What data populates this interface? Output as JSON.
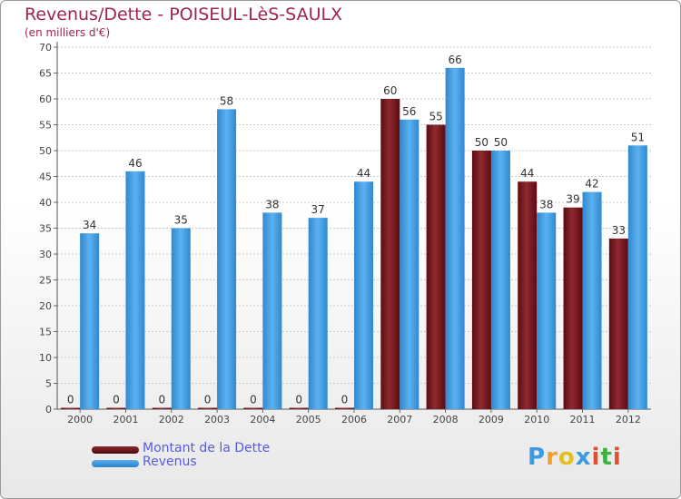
{
  "chart_data": {
    "type": "bar",
    "title": "Revenus/Dette - POISEUL-LèS-SAULX",
    "subtitle": "(en milliers d'€)",
    "categories": [
      "2000",
      "2001",
      "2002",
      "2003",
      "2004",
      "2005",
      "2006",
      "2007",
      "2008",
      "2009",
      "2010",
      "2011",
      "2012"
    ],
    "series": [
      {
        "name": "Montant de la Dette",
        "values": [
          0,
          0,
          0,
          0,
          0,
          0,
          0,
          60,
          55,
          50,
          44,
          39,
          33
        ],
        "color": "#7a1a1f"
      },
      {
        "name": "Revenus",
        "values": [
          34,
          46,
          35,
          58,
          38,
          37,
          44,
          56,
          66,
          50,
          38,
          42,
          51
        ],
        "color": "#3c9be0"
      }
    ],
    "ylim": [
      0,
      70
    ],
    "yticks": [
      0,
      5,
      10,
      15,
      20,
      25,
      30,
      35,
      40,
      45,
      50,
      55,
      60,
      65,
      70
    ],
    "grid": true,
    "legend_position": "bottom-left"
  },
  "logo": {
    "letters": [
      "P",
      "r",
      "o",
      "x",
      "i",
      "t",
      "i"
    ],
    "colors": [
      "#3c9be0",
      "#f0a030",
      "#e0c020",
      "#3c9be0",
      "#e05030",
      "#40b040",
      "#e05030"
    ]
  }
}
